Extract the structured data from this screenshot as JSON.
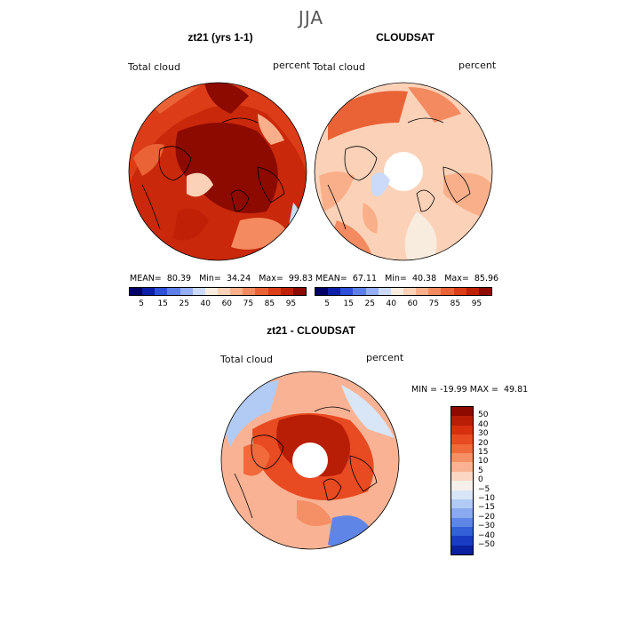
{
  "figure_title": "JJA",
  "panels": {
    "model": {
      "title": "zt21 (yrs 1-1)",
      "field_label": "Total cloud",
      "units": "percent",
      "stats": {
        "mean": "80.39",
        "min": "34.24",
        "max": "99.83"
      }
    },
    "obs": {
      "title": "CLOUDSAT",
      "field_label": "Total cloud",
      "units": "percent",
      "stats": {
        "mean": "67.11",
        "min": "40.38",
        "max": "85.96"
      }
    },
    "diff": {
      "title": "zt21 - CLOUDSAT",
      "field_label": "Total cloud",
      "units": "percent",
      "min_max_label": "MIN = -19.99 MAX =  49.81"
    }
  },
  "stat_labels": {
    "mean": "MEAN=",
    "min": "Min=",
    "max": "Max="
  },
  "colorbar_abs": {
    "ticks": [
      "5",
      "15",
      "25",
      "40",
      "60",
      "75",
      "85",
      "95"
    ],
    "colors": [
      "#000066",
      "#0d1fa6",
      "#2f4fd8",
      "#5f7fe8",
      "#95adf2",
      "#cadaf8",
      "#f7ecde",
      "#fbd2b8",
      "#f9b08a",
      "#f48a60",
      "#ea6336",
      "#dc3c17",
      "#c02006",
      "#8c0a00"
    ]
  },
  "colorbar_diff": {
    "ticks": [
      "50",
      "40",
      "30",
      "20",
      "15",
      "10",
      "5",
      "0",
      "−5",
      "−10",
      "−15",
      "−20",
      "−30",
      "−40",
      "−50"
    ],
    "colors": [
      "#8c0a00",
      "#b81e05",
      "#d63010",
      "#e84a22",
      "#f06a3c",
      "#f58f66",
      "#f9b394",
      "#fbd6c2",
      "#f5f1ea",
      "#d9e6f8",
      "#b2cbf4",
      "#8aa9ee",
      "#5f86e6",
      "#3460d8",
      "#1a3cc4",
      "#0a20a0"
    ]
  }
}
